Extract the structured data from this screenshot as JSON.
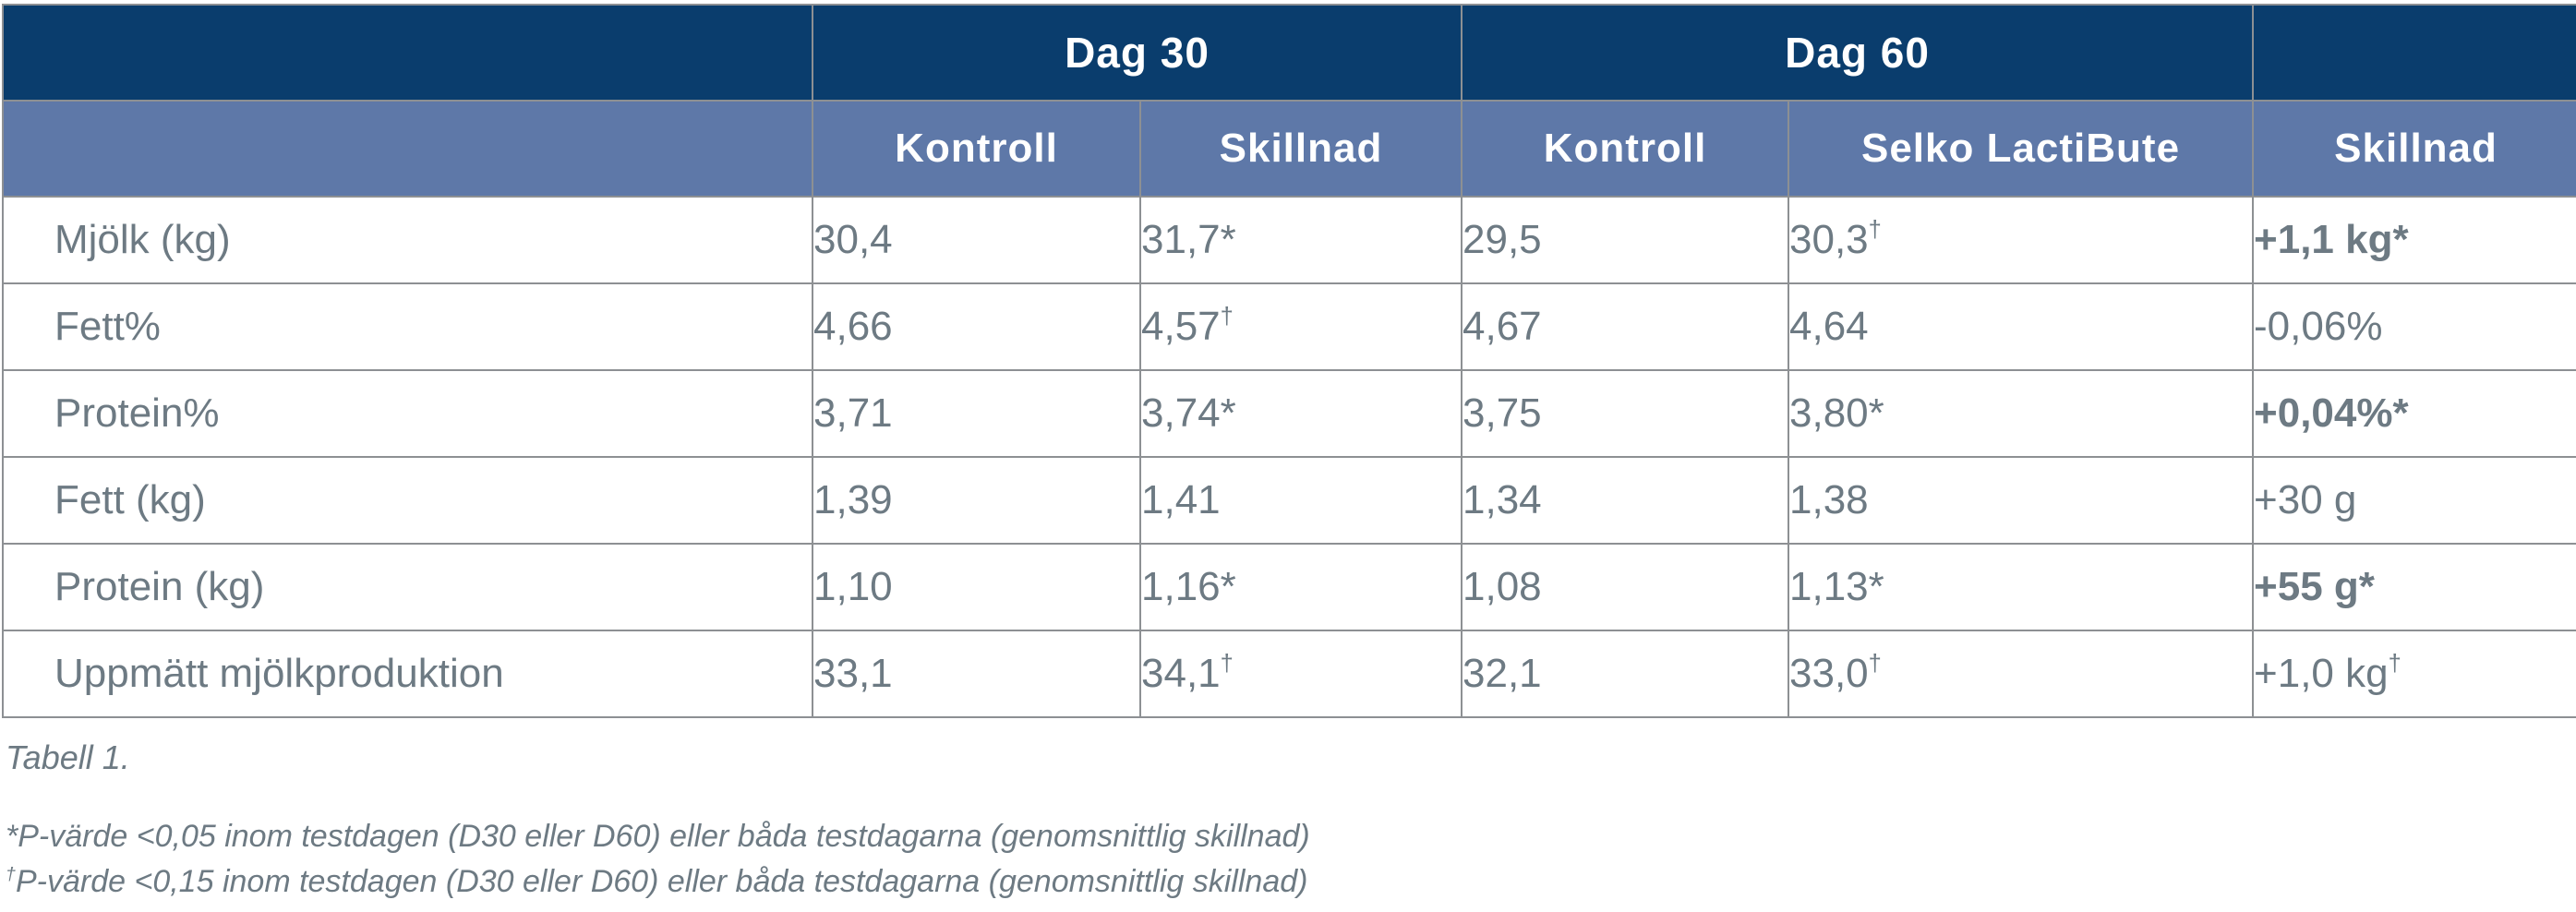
{
  "colors": {
    "header_dark": "#0a3d6d",
    "header_light": "#5e78a8",
    "text": "#6d7a83",
    "border": "#8d9093"
  },
  "table": {
    "group_headers": {
      "left_empty": "",
      "dag30": "Dag 30",
      "dag60": "Dag 60",
      "right_empty": ""
    },
    "col_headers": [
      "",
      "Kontroll",
      "Skillnad",
      "Kontroll",
      "Selko LactiBute",
      "Skillnad"
    ],
    "rows": [
      {
        "label": "Mjölk (kg)",
        "cells": [
          {
            "v": "30,4",
            "m": "",
            "bold": false
          },
          {
            "v": "31,7",
            "m": "*",
            "bold": false
          },
          {
            "v": "29,5",
            "m": "",
            "bold": false
          },
          {
            "v": "30,3",
            "m": "†",
            "bold": false
          },
          {
            "v": "+1,1 kg",
            "m": "*",
            "bold": true
          }
        ]
      },
      {
        "label": "Fett%",
        "cells": [
          {
            "v": "4,66",
            "m": "",
            "bold": false
          },
          {
            "v": "4,57",
            "m": "†",
            "bold": false
          },
          {
            "v": "4,67",
            "m": "",
            "bold": false
          },
          {
            "v": "4,64",
            "m": "",
            "bold": false
          },
          {
            "v": "-0,06%",
            "m": "",
            "bold": false
          }
        ]
      },
      {
        "label": "Protein%",
        "cells": [
          {
            "v": "3,71",
            "m": "",
            "bold": false
          },
          {
            "v": "3,74",
            "m": "*",
            "bold": false
          },
          {
            "v": "3,75",
            "m": "",
            "bold": false
          },
          {
            "v": "3,80",
            "m": "*",
            "bold": false
          },
          {
            "v": "+0,04%",
            "m": "*",
            "bold": true
          }
        ]
      },
      {
        "label": "Fett (kg)",
        "cells": [
          {
            "v": "1,39",
            "m": "",
            "bold": false
          },
          {
            "v": "1,41",
            "m": "",
            "bold": false
          },
          {
            "v": "1,34",
            "m": "",
            "bold": false
          },
          {
            "v": "1,38",
            "m": "",
            "bold": false
          },
          {
            "v": "+30 g",
            "m": "",
            "bold": false
          }
        ]
      },
      {
        "label": "Protein (kg)",
        "cells": [
          {
            "v": "1,10",
            "m": "",
            "bold": false
          },
          {
            "v": "1,16",
            "m": "*",
            "bold": false
          },
          {
            "v": "1,08",
            "m": "",
            "bold": false
          },
          {
            "v": "1,13",
            "m": "*",
            "bold": false
          },
          {
            "v": "+55 g",
            "m": "*",
            "bold": true
          }
        ]
      },
      {
        "label": "Uppmätt mjölkproduktion",
        "cells": [
          {
            "v": "33,1",
            "m": "",
            "bold": false
          },
          {
            "v": "34,1",
            "m": "†",
            "bold": false
          },
          {
            "v": "32,1",
            "m": "",
            "bold": false
          },
          {
            "v": "33,0",
            "m": "†",
            "bold": false
          },
          {
            "v": "+1,0 kg",
            "m": "†",
            "bold": false
          }
        ]
      }
    ]
  },
  "caption": "Tabell 1.",
  "footnotes": [
    {
      "prefix": "*",
      "text": "P-värde <0,05 inom testdagen (D30 eller D60) eller båda testdagarna (genomsnittlig skillnad)"
    },
    {
      "prefix": "†",
      "text": "P-värde <0,15 inom testdagen (D30 eller D60) eller båda testdagarna (genomsnittlig skillnad)"
    }
  ]
}
